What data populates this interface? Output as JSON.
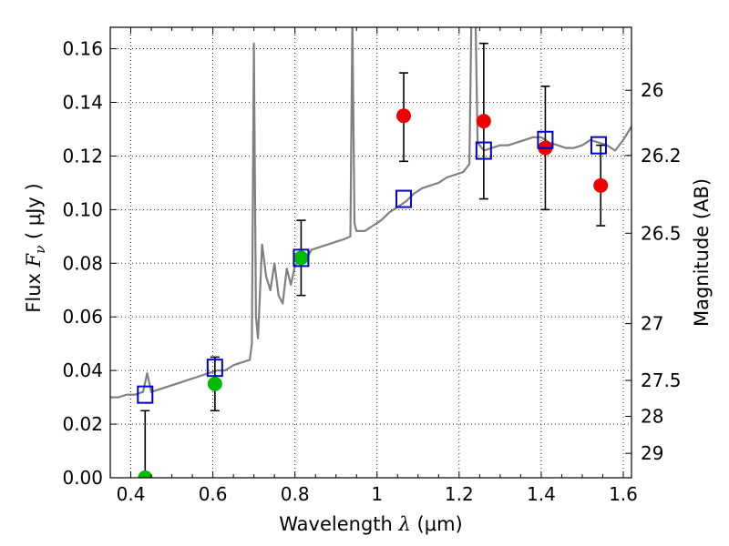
{
  "chart_data": {
    "type": "scatter",
    "xlabel_text": "Wavelength",
    "xlabel_symbol": "λ",
    "xlabel_unit": "(μm)",
    "ylabel_text": "Flux",
    "ylabel_symbol": "F",
    "ylabel_subscript": "ν",
    "ylabel_unit": "( μJy )",
    "y2label": "Magnitude (AB)",
    "xlim": [
      0.35,
      1.62
    ],
    "ylim": [
      0.0,
      0.168
    ],
    "grid": true,
    "x_ticks": [
      0.4,
      0.6,
      0.8,
      1.0,
      1.2,
      1.4,
      1.6
    ],
    "x_tick_labels": [
      "0.4",
      "0.6",
      "0.8",
      "1",
      "1.2",
      "1.4",
      "1.6"
    ],
    "y_ticks": [
      0.0,
      0.02,
      0.04,
      0.06,
      0.08,
      0.1,
      0.12,
      0.14,
      0.16
    ],
    "y_tick_labels": [
      "0.00",
      "0.02",
      "0.04",
      "0.06",
      "0.08",
      "0.10",
      "0.12",
      "0.14",
      "0.16"
    ],
    "y2_ticks": [
      {
        "label": "26",
        "flux": 0.1445
      },
      {
        "label": "26.2",
        "flux": 0.1202
      },
      {
        "label": "26.5",
        "flux": 0.0912
      },
      {
        "label": "27",
        "flux": 0.0575
      },
      {
        "label": "27.5",
        "flux": 0.0363
      },
      {
        "label": "28",
        "flux": 0.0229
      },
      {
        "label": "29",
        "flux": 0.0091
      }
    ],
    "model_spectrum": {
      "color": "#808080",
      "points": [
        [
          0.35,
          0.03
        ],
        [
          0.37,
          0.03
        ],
        [
          0.39,
          0.031
        ],
        [
          0.41,
          0.031
        ],
        [
          0.43,
          0.032
        ],
        [
          0.44,
          0.039
        ],
        [
          0.45,
          0.032
        ],
        [
          0.47,
          0.033
        ],
        [
          0.49,
          0.034
        ],
        [
          0.51,
          0.035
        ],
        [
          0.53,
          0.036
        ],
        [
          0.55,
          0.037
        ],
        [
          0.57,
          0.038
        ],
        [
          0.59,
          0.039
        ],
        [
          0.61,
          0.04
        ],
        [
          0.63,
          0.04
        ],
        [
          0.65,
          0.042
        ],
        [
          0.67,
          0.043
        ],
        [
          0.69,
          0.044
        ],
        [
          0.695,
          0.05
        ],
        [
          0.7,
          0.162
        ],
        [
          0.705,
          0.06
        ],
        [
          0.71,
          0.052
        ],
        [
          0.72,
          0.087
        ],
        [
          0.73,
          0.075
        ],
        [
          0.74,
          0.07
        ],
        [
          0.75,
          0.08
        ],
        [
          0.76,
          0.068
        ],
        [
          0.77,
          0.065
        ],
        [
          0.78,
          0.078
        ],
        [
          0.79,
          0.072
        ],
        [
          0.8,
          0.079
        ],
        [
          0.81,
          0.081
        ],
        [
          0.82,
          0.082
        ],
        [
          0.83,
          0.082
        ],
        [
          0.84,
          0.085
        ],
        [
          0.86,
          0.086
        ],
        [
          0.88,
          0.087
        ],
        [
          0.9,
          0.088
        ],
        [
          0.92,
          0.089
        ],
        [
          0.935,
          0.09
        ],
        [
          0.94,
          0.171
        ],
        [
          0.945,
          0.095
        ],
        [
          0.95,
          0.092
        ],
        [
          0.97,
          0.092
        ],
        [
          0.99,
          0.094
        ],
        [
          1.01,
          0.096
        ],
        [
          1.03,
          0.099
        ],
        [
          1.05,
          0.101
        ],
        [
          1.07,
          0.103
        ],
        [
          1.09,
          0.106
        ],
        [
          1.11,
          0.108
        ],
        [
          1.13,
          0.109
        ],
        [
          1.15,
          0.11
        ],
        [
          1.17,
          0.112
        ],
        [
          1.19,
          0.113
        ],
        [
          1.21,
          0.114
        ],
        [
          1.225,
          0.117
        ],
        [
          1.23,
          0.171
        ],
        [
          1.24,
          0.171
        ],
        [
          1.245,
          0.125
        ],
        [
          1.26,
          0.122
        ],
        [
          1.28,
          0.123
        ],
        [
          1.3,
          0.124
        ],
        [
          1.32,
          0.124
        ],
        [
          1.34,
          0.125
        ],
        [
          1.36,
          0.126
        ],
        [
          1.38,
          0.127
        ],
        [
          1.4,
          0.127
        ],
        [
          1.42,
          0.125
        ],
        [
          1.44,
          0.124
        ],
        [
          1.46,
          0.123
        ],
        [
          1.48,
          0.123
        ],
        [
          1.5,
          0.124
        ],
        [
          1.52,
          0.126
        ],
        [
          1.54,
          0.125
        ],
        [
          1.56,
          0.124
        ],
        [
          1.58,
          0.122
        ],
        [
          1.6,
          0.126
        ],
        [
          1.62,
          0.131
        ]
      ]
    },
    "model_photometry": {
      "color": "#0000cc",
      "marker": "open-square",
      "points": [
        [
          0.435,
          0.031
        ],
        [
          0.605,
          0.041
        ],
        [
          0.815,
          0.082
        ],
        [
          1.065,
          0.104
        ],
        [
          1.26,
          0.122
        ],
        [
          1.41,
          0.126
        ],
        [
          1.54,
          0.124
        ]
      ]
    },
    "observed_optical": {
      "color": "#00bb00",
      "marker": "filled-circle",
      "points": [
        {
          "x": 0.435,
          "y": 0.0,
          "err_up": 0.025,
          "err_down": 0.0
        },
        {
          "x": 0.605,
          "y": 0.035,
          "err_up": 0.01,
          "err_down": 0.01
        },
        {
          "x": 0.815,
          "y": 0.082,
          "err_up": 0.014,
          "err_down": 0.014
        }
      ]
    },
    "observed_nir": {
      "color": "#ee0000",
      "marker": "filled-circle",
      "points": [
        {
          "x": 1.065,
          "y": 0.135,
          "err_up": 0.016,
          "err_down": 0.017
        },
        {
          "x": 1.26,
          "y": 0.133,
          "err_up": 0.029,
          "err_down": 0.029
        },
        {
          "x": 1.41,
          "y": 0.123,
          "err_up": 0.023,
          "err_down": 0.023
        },
        {
          "x": 1.545,
          "y": 0.109,
          "err_up": 0.015,
          "err_down": 0.015
        }
      ]
    }
  }
}
